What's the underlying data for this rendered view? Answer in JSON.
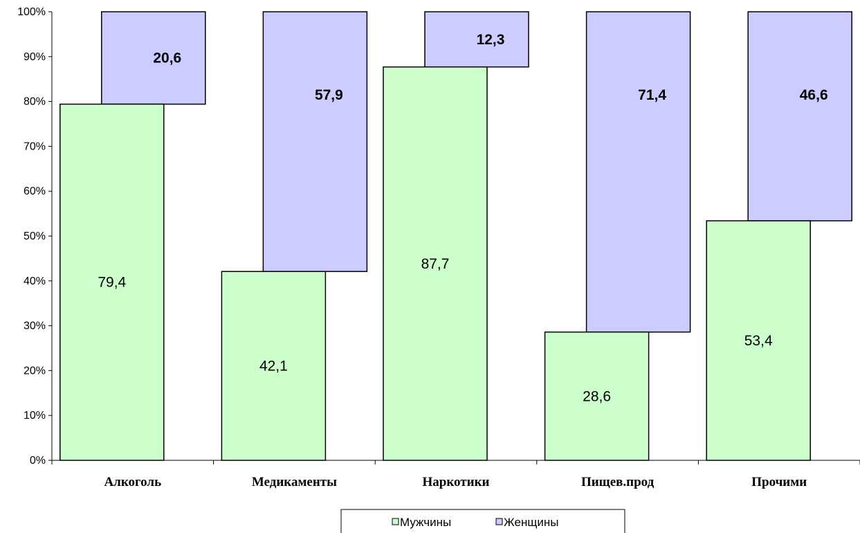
{
  "chart_data": {
    "type": "bar",
    "stacked": true,
    "percent": true,
    "title": "",
    "xlabel": "",
    "ylabel": "",
    "ylim": [
      0,
      100
    ],
    "y_ticks": [
      "0%",
      "10%",
      "20%",
      "30%",
      "40%",
      "50%",
      "60%",
      "70%",
      "80%",
      "90%",
      "100%"
    ],
    "categories": [
      "Алкоголь",
      "Медикаменты",
      "Наркотики",
      "Пищев.прод",
      "Прочими"
    ],
    "series": [
      {
        "name": "Мужчины",
        "color": "#ccffcc",
        "values": [
          79.4,
          42.1,
          87.7,
          28.6,
          53.4
        ],
        "labels": [
          "79,4",
          "42,1",
          "87,7",
          "28,6",
          "53,4"
        ]
      },
      {
        "name": "Женщины",
        "color": "#ccccff",
        "values": [
          20.6,
          57.9,
          12.3,
          71.4,
          46.6
        ],
        "labels": [
          "20,6",
          "57,9",
          "12,3",
          "71,4",
          "46,6"
        ]
      }
    ],
    "legend": {
      "position": "bottom"
    },
    "grid": false
  }
}
